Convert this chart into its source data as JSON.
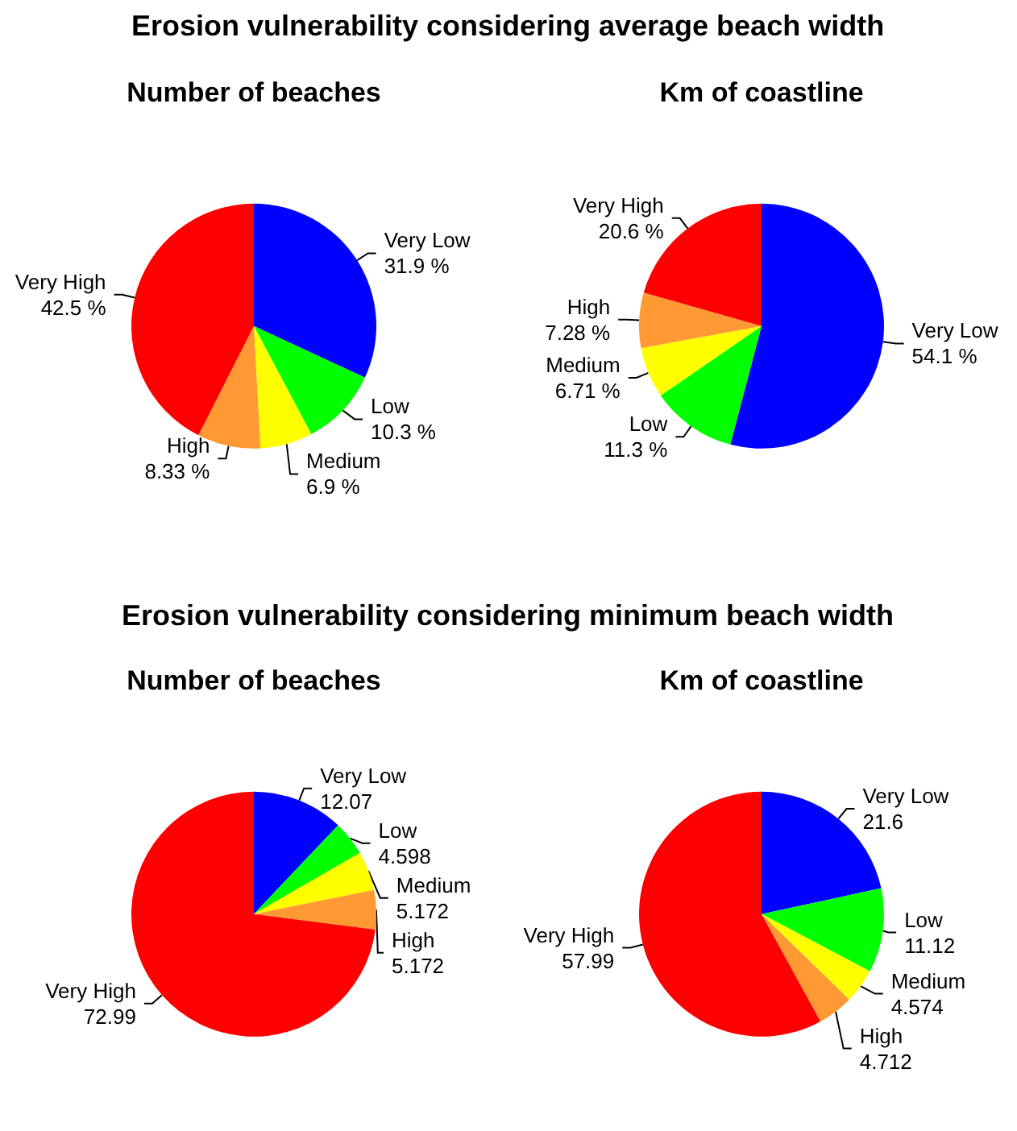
{
  "chart_data": [
    {
      "type": "pie",
      "title": "Number of beaches",
      "annotations": [
        "Erosion vulnerability considering average beach width"
      ],
      "categories": [
        "Very Low",
        "Low",
        "Medium",
        "High",
        "Very High"
      ],
      "values": [
        31.9,
        10.3,
        6.9,
        8.33,
        42.5
      ],
      "value_labels": [
        "31.9 %",
        "10.3 %",
        "6.9 %",
        "8.33 %",
        "42.5 %"
      ],
      "colors": [
        "#0000ff",
        "#00ff00",
        "#ffff00",
        "#ff9933",
        "#ff0000"
      ]
    },
    {
      "type": "pie",
      "title": "Km of coastline",
      "categories": [
        "Very Low",
        "Low",
        "Medium",
        "High",
        "Very High"
      ],
      "values": [
        54.1,
        11.3,
        6.71,
        7.28,
        20.6
      ],
      "value_labels": [
        "54.1 %",
        "11.3 %",
        "6.71 %",
        "7.28 %",
        "20.6 %"
      ],
      "colors": [
        "#0000ff",
        "#00ff00",
        "#ffff00",
        "#ff9933",
        "#ff0000"
      ]
    },
    {
      "type": "pie",
      "title": "Number of beaches",
      "annotations": [
        "Erosion vulnerability considering minimum beach width"
      ],
      "categories": [
        "Very Low",
        "Low",
        "Medium",
        "High",
        "Very High"
      ],
      "values": [
        12.07,
        4.598,
        5.172,
        5.172,
        72.99
      ],
      "data_labels": true,
      "colors": [
        "#0000ff",
        "#00ff00",
        "#ffff00",
        "#ff9933",
        "#ff0000"
      ]
    },
    {
      "type": "pie",
      "title": "Km of coastline",
      "categories": [
        "Very Low",
        "Low",
        "Medium",
        "High",
        "Very High"
      ],
      "values": [
        21.6,
        11.12,
        4.574,
        4.712,
        57.99
      ],
      "data_labels": true,
      "colors": [
        "#0000ff",
        "#00ff00",
        "#ffff00",
        "#ff9933",
        "#ff0000"
      ]
    }
  ]
}
